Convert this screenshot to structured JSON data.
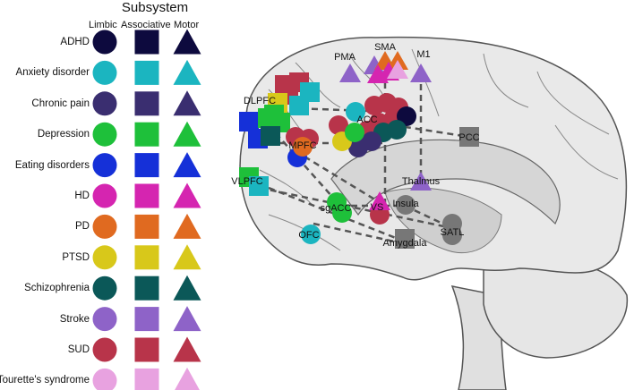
{
  "legend": {
    "title": "Subsystem",
    "columns": [
      "Limbic",
      "Associative",
      "Motor"
    ],
    "items": [
      {
        "label": "ADHD",
        "color": "#0d0a3e"
      },
      {
        "label": "Anxiety disorder",
        "color": "#1bb5c0"
      },
      {
        "label": "Chronic pain",
        "color": "#3a2e70"
      },
      {
        "label": "Depression",
        "color": "#1ec03a"
      },
      {
        "label": "Eating disorders",
        "color": "#1530d8"
      },
      {
        "label": "HD",
        "color": "#d525b0"
      },
      {
        "label": "PD",
        "color": "#e06a20"
      },
      {
        "label": "PTSD",
        "color": "#d8c81a"
      },
      {
        "label": "Schizophrenia",
        "color": "#0b5858"
      },
      {
        "label": "Stroke",
        "color": "#8e63c8"
      },
      {
        "label": "SUD",
        "color": "#b8344a"
      },
      {
        "label": "Tourette's syndrome",
        "color": "#e8a2e0"
      }
    ]
  },
  "regions": {
    "pma": "PMA",
    "sma": "SMA",
    "m1": "M1",
    "dlpfc": "DLPFC",
    "acc": "ACC",
    "mpfc": "MPFC",
    "pcc": "PCC",
    "vlpfc": "VLPFC",
    "thalamus": "Thalmus",
    "insula": "Insula",
    "sgacc": "sgACC",
    "vs": "VS",
    "ofc": "OFC",
    "satl": "SATL",
    "amygdala": "Amygdala"
  },
  "colors": {
    "region_gray": "#777777",
    "brain_fill": "#e9e9e9",
    "brain_outline": "#555555"
  }
}
